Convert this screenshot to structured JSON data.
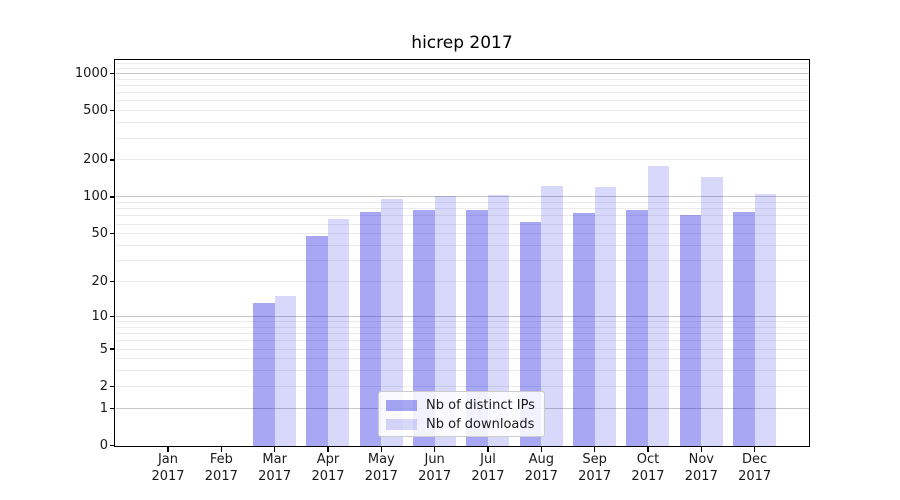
{
  "title": "hicrep 2017",
  "chart_data": {
    "type": "bar",
    "title": "hicrep 2017",
    "categories": [
      "Jan 2017",
      "Feb 2017",
      "Mar 2017",
      "Apr 2017",
      "May 2017",
      "Jun 2017",
      "Jul 2017",
      "Aug 2017",
      "Sep 2017",
      "Oct 2017",
      "Nov 2017",
      "Dec 2017"
    ],
    "series": [
      {
        "name": "Nb of distinct IPs",
        "color": "rgba(15,15,225,0.37)",
        "values": [
          0,
          0,
          13,
          48,
          75,
          78,
          79,
          63,
          74,
          78,
          71,
          75
        ]
      },
      {
        "name": "Nb of downloads",
        "color": "rgba(15,15,225,0.16)",
        "values": [
          0,
          0,
          15,
          66,
          96,
          102,
          103,
          123,
          120,
          180,
          145,
          105
        ]
      }
    ],
    "xlabel": "",
    "ylabel": "",
    "yscale": "log1p",
    "yticks": [
      0,
      1,
      2,
      5,
      10,
      20,
      50,
      100,
      200,
      500,
      1000
    ],
    "ylim": [
      0,
      1270
    ],
    "grid": "horizontal",
    "legend_position": "lower center"
  },
  "colors": {
    "major_grid": "#c6c6c6",
    "minor_grid": "#ebebeb",
    "spine": "#000000",
    "text": "#1a1a1a"
  }
}
